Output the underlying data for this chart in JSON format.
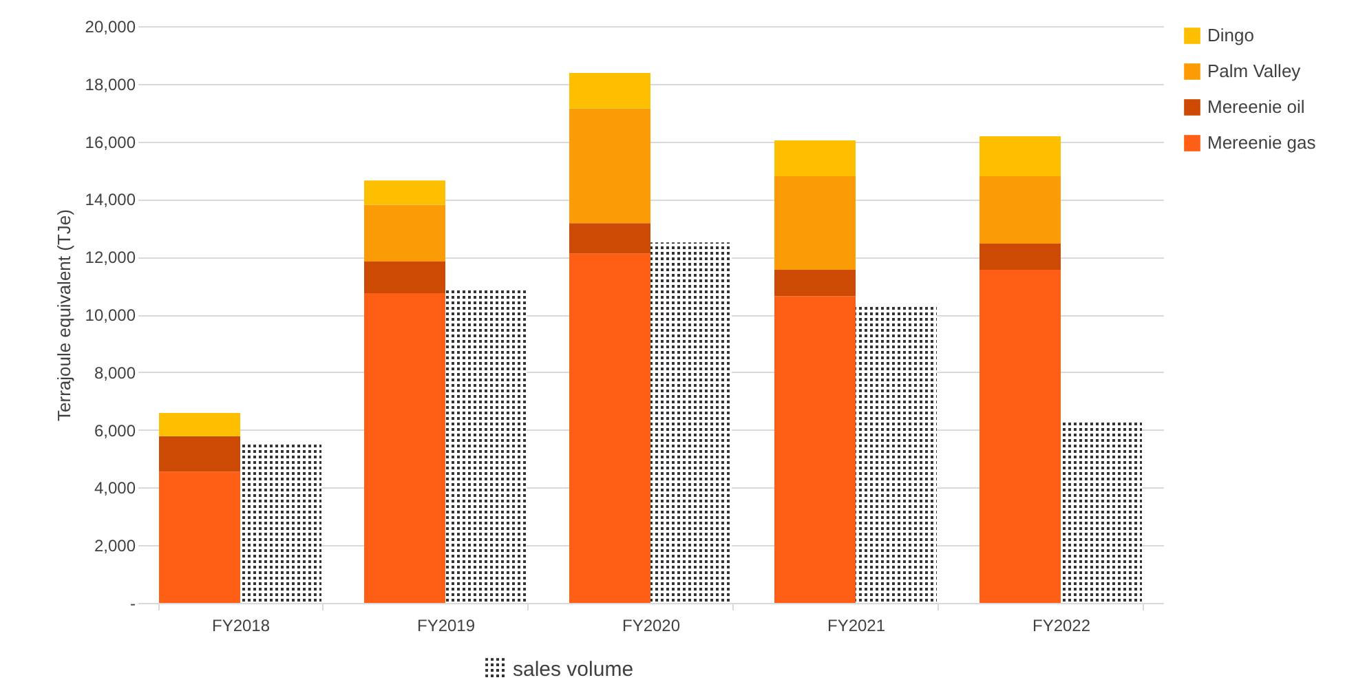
{
  "chart_data": [
    {
      "type": "bar",
      "ylabel": "Terrajoule equivalent (TJe)",
      "categories": [
        "FY2018",
        "FY2019",
        "FY2020",
        "FY2021",
        "FY2022"
      ],
      "stacked": true,
      "series": [
        {
          "name": "Mereenie gas",
          "color": "#fe5f15",
          "values": [
            4550,
            10740,
            12120,
            10640,
            11550
          ]
        },
        {
          "name": "Mereenie oil",
          "color": "#cc4a03",
          "values": [
            1230,
            1100,
            1050,
            910,
            910
          ]
        },
        {
          "name": "Palm Valley",
          "color": "#fb9b05",
          "values": [
            0,
            1960,
            3970,
            3250,
            2340
          ]
        },
        {
          "name": "Dingo",
          "color": "#fdbf00",
          "values": [
            810,
            850,
            1240,
            1240,
            1380
          ]
        }
      ],
      "ylim": [
        0,
        20000
      ],
      "yticks": [
        {
          "value": 0,
          "label": "-"
        },
        {
          "value": 2000,
          "label": "2,000"
        },
        {
          "value": 4000,
          "label": "4,000"
        },
        {
          "value": 6000,
          "label": "6,000"
        },
        {
          "value": 8000,
          "label": "8,000"
        },
        {
          "value": 10000,
          "label": "10,000"
        },
        {
          "value": 12000,
          "label": "12,000"
        },
        {
          "value": 14000,
          "label": "14,000"
        },
        {
          "value": 16000,
          "label": "16,000"
        },
        {
          "value": 18000,
          "label": "18,000"
        },
        {
          "value": 20000,
          "label": "20,000"
        }
      ],
      "grid": "y",
      "legend": "right"
    },
    {
      "type": "bar",
      "categories": [
        null,
        null,
        null,
        null,
        null
      ],
      "series": [
        {
          "name": "sales volume",
          "color": "#333333",
          "values": [
            5540,
            10880,
            12500,
            10360,
            6350
          ]
        }
      ],
      "ylim": [
        0,
        20000
      ],
      "tick_labels": false,
      "legend": "bottom"
    }
  ]
}
